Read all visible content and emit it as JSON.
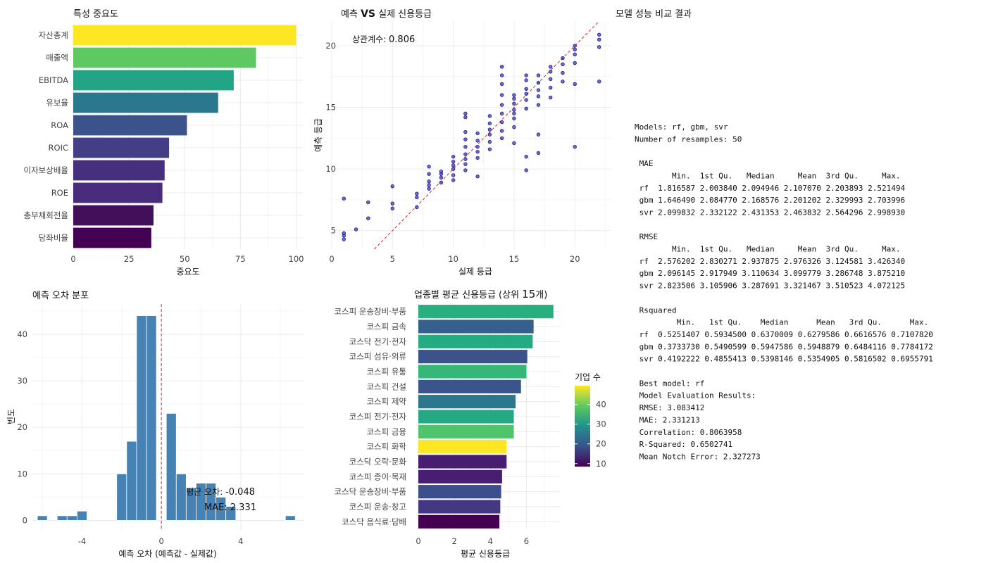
{
  "colors": {
    "bar_blue": "#4682b4",
    "refline": "#d62728",
    "point_fill": "#3b3bc4",
    "point_stroke": "#1a1a80"
  },
  "chart_data": [
    {
      "id": "importance",
      "type": "bar",
      "orientation": "horizontal",
      "title": "특성 중요도",
      "xlabel": "중요도",
      "ylabel": "",
      "xlim": [
        0,
        103
      ],
      "xticks": [
        0,
        25,
        50,
        75,
        100
      ],
      "categories": [
        "자산총계",
        "매출액",
        "EBITDA",
        "유보율",
        "ROA",
        "ROIC",
        "이자보상배율",
        "ROE",
        "총부채회전율",
        "당좌비율"
      ],
      "values": [
        100,
        82,
        72,
        65,
        51,
        43,
        41,
        40,
        36,
        35
      ],
      "colors": [
        "#fde725",
        "#5ec962",
        "#21a585",
        "#2a788e",
        "#3b528b",
        "#433e85",
        "#46307e",
        "#472d7b",
        "#440f5a",
        "#440154"
      ]
    },
    {
      "id": "scatter",
      "type": "scatter",
      "title_parts": [
        "예측 ",
        "VS",
        " 실제 신용등급"
      ],
      "xlabel": "실제 등급",
      "ylabel": "예측 등급",
      "xlim": [
        0,
        23
      ],
      "ylim": [
        3.5,
        22
      ],
      "xticks": [
        0,
        5,
        10,
        15,
        20
      ],
      "yticks": [
        5,
        10,
        15,
        20
      ],
      "annotation_label": "상관계수: ",
      "annotation_value": "0.806",
      "reference_line": "y = x",
      "points": [
        [
          1,
          4.3
        ],
        [
          1,
          4.6
        ],
        [
          1,
          4.8
        ],
        [
          1,
          7.6
        ],
        [
          2,
          5.1
        ],
        [
          3,
          6.0
        ],
        [
          3,
          7.3
        ],
        [
          5,
          6.8
        ],
        [
          5,
          7.2
        ],
        [
          5,
          8.6
        ],
        [
          7,
          6.9
        ],
        [
          7,
          7.7
        ],
        [
          7,
          8.0
        ],
        [
          8,
          8.4
        ],
        [
          8,
          8.7
        ],
        [
          8,
          9.0
        ],
        [
          8,
          9.6
        ],
        [
          8,
          10.2
        ],
        [
          9,
          8.9
        ],
        [
          9,
          9.3
        ],
        [
          9,
          9.6
        ],
        [
          9,
          9.8
        ],
        [
          10,
          9.1
        ],
        [
          10,
          9.5
        ],
        [
          10,
          10.0
        ],
        [
          10,
          10.3
        ],
        [
          10,
          10.6
        ],
        [
          10,
          11.0
        ],
        [
          11,
          9.9
        ],
        [
          11,
          10.4
        ],
        [
          11,
          10.8
        ],
        [
          11,
          11.2
        ],
        [
          11,
          11.8
        ],
        [
          11,
          12.4
        ],
        [
          11,
          13.0
        ],
        [
          11,
          14.2
        ],
        [
          11,
          14.5
        ],
        [
          12,
          10.9
        ],
        [
          12,
          11.4
        ],
        [
          12,
          11.8
        ],
        [
          12,
          12.3
        ],
        [
          12,
          12.9
        ],
        [
          13,
          11.6
        ],
        [
          13,
          12.2
        ],
        [
          13,
          12.8
        ],
        [
          13,
          13.2
        ],
        [
          13,
          13.7
        ],
        [
          13,
          14.3
        ],
        [
          14,
          12.5
        ],
        [
          14,
          13.1
        ],
        [
          14,
          13.8
        ],
        [
          14,
          14.5
        ],
        [
          14,
          15.2
        ],
        [
          14,
          16.0
        ],
        [
          14,
          16.9
        ],
        [
          14,
          17.6
        ],
        [
          14,
          18.3
        ],
        [
          15,
          12.1
        ],
        [
          15,
          13.4
        ],
        [
          15,
          14.1
        ],
        [
          15,
          14.8
        ],
        [
          15,
          15.3
        ],
        [
          15,
          15.7
        ],
        [
          15,
          16.0
        ],
        [
          16,
          9.9
        ],
        [
          16,
          14.9
        ],
        [
          16,
          15.6
        ],
        [
          16,
          16.1
        ],
        [
          16,
          16.5
        ],
        [
          16,
          17.2
        ],
        [
          16,
          17.6
        ],
        [
          17,
          12.8
        ],
        [
          17,
          15.2
        ],
        [
          17,
          15.9
        ],
        [
          17,
          16.4
        ],
        [
          17,
          17.0
        ],
        [
          17,
          17.6
        ],
        [
          18,
          15.8
        ],
        [
          18,
          16.6
        ],
        [
          18,
          17.3
        ],
        [
          18,
          17.9
        ],
        [
          18,
          18.3
        ],
        [
          19,
          17.1
        ],
        [
          19,
          17.8
        ],
        [
          19,
          18.5
        ],
        [
          19,
          19.0
        ],
        [
          20,
          16.9
        ],
        [
          20,
          18.6
        ],
        [
          20,
          19.3
        ],
        [
          20,
          19.7
        ],
        [
          20,
          20.0
        ],
        [
          22,
          17.1
        ],
        [
          22,
          19.9
        ],
        [
          22,
          20.5
        ],
        [
          22,
          20.9
        ],
        [
          20,
          11.8
        ],
        [
          17,
          11.3
        ],
        [
          16,
          11.0
        ],
        [
          12,
          9.4
        ],
        [
          15,
          14.5
        ]
      ]
    },
    {
      "id": "histogram",
      "type": "bar",
      "subtype": "histogram",
      "title": "예측 오차 분포",
      "xlabel": "예측 오차 (예측값 - 실제값)",
      "ylabel": "빈도",
      "xlim": [
        -6.5,
        7.2
      ],
      "ylim": [
        -2.2,
        46.5
      ],
      "xticks": [
        -4,
        0,
        4
      ],
      "yticks": [
        0,
        10,
        20,
        30,
        40
      ],
      "bin_width": 0.5,
      "bins": [
        {
          "x": -6.0,
          "count": 1
        },
        {
          "x": -5.0,
          "count": 1
        },
        {
          "x": -4.5,
          "count": 1
        },
        {
          "x": -4.0,
          "count": 2
        },
        {
          "x": -2.0,
          "count": 10
        },
        {
          "x": -1.5,
          "count": 17
        },
        {
          "x": -1.0,
          "count": 44
        },
        {
          "x": -0.5,
          "count": 44
        },
        {
          "x": 0.5,
          "count": 23
        },
        {
          "x": 1.0,
          "count": 10
        },
        {
          "x": 1.5,
          "count": 7
        },
        {
          "x": 2.0,
          "count": 8
        },
        {
          "x": 2.5,
          "count": 8
        },
        {
          "x": 3.0,
          "count": 5
        },
        {
          "x": 3.5,
          "count": 3
        },
        {
          "x": 6.5,
          "count": 1
        }
      ],
      "mean_line_x": 0,
      "annotation_mean_label": "평균 오차: ",
      "annotation_mean_value": "-0.048",
      "annotation_mae_label": "MAE: ",
      "annotation_mae_value": "2.331"
    },
    {
      "id": "industry",
      "type": "bar",
      "orientation": "horizontal",
      "title_parts": [
        "업종별 평균 신용등급 (상위 ",
        "15",
        "개)"
      ],
      "xlabel": "평균 신용등급",
      "ylabel": "",
      "xlim": [
        0,
        7.9
      ],
      "xticks": [
        0,
        2,
        4,
        6
      ],
      "categories": [
        "코스피 운송장비·부품",
        "코스피 금속",
        "코스닥 전기·전자",
        "코스피 섬유·의류",
        "코스피 유통",
        "코스피 건설",
        "코스피 제약",
        "코스피 전기·전자",
        "코스피 금융",
        "코스피 화학",
        "코스닥 오락·문화",
        "코스피 종이·목재",
        "코스닥 운송장비·부품",
        "코스피 운송·창고",
        "코스닥 음식료·담배"
      ],
      "values": [
        7.5,
        6.4,
        6.35,
        6.05,
        6.0,
        5.7,
        5.4,
        5.3,
        5.3,
        4.9,
        4.9,
        4.65,
        4.6,
        4.55,
        4.5
      ],
      "company_counts": [
        40,
        20,
        36,
        18,
        38,
        18,
        28,
        33,
        42,
        49,
        10,
        11,
        21,
        15,
        9
      ],
      "colors": [
        "#29af7f",
        "#355f8d",
        "#25ab82",
        "#3b528b",
        "#35b779",
        "#3a548c",
        "#2a778e",
        "#25a884",
        "#50c46a",
        "#fde725",
        "#461d6f",
        "#471e71",
        "#3c4f8a",
        "#443883",
        "#440154"
      ],
      "legend_title": "기업 수",
      "legend_range": [
        8.5,
        49.5
      ],
      "legend_ticks": [
        10,
        20,
        30,
        40
      ]
    }
  ],
  "model_output": {
    "title": "모델 성능 비교 결과",
    "lines": [
      "Models: rf, gbm, svr",
      "Number of resamples: 50",
      "",
      " MAE",
      "        Min.  1st Qu.   Median     Mean  3rd Qu.     Max.",
      " rf  1.816587 2.003840 2.094946 2.107070 2.203893 2.521494",
      " gbm 1.646490 2.084770 2.168576 2.201202 2.329993 2.703996",
      " svr 2.099832 2.332122 2.431353 2.463832 2.564296 2.998930",
      "",
      " RMSE",
      "        Min.  1st Qu.   Median     Mean  3rd Qu.     Max.",
      " rf  2.576202 2.830271 2.937875 2.976326 3.124581 3.426340",
      " gbm 2.096145 2.917949 3.110634 3.099779 3.286748 3.875210",
      " svr 2.823506 3.105906 3.287691 3.321467 3.510523 4.072125",
      "",
      " Rsquared",
      "         Min.   1st Qu.    Median      Mean   3rd Qu.      Max.",
      " rf  0.5251407 0.5934500 0.6370009 0.6279586 0.6616576 0.7107820",
      " gbm 0.3733730 0.5490599 0.5947586 0.5948879 0.6484116 0.7784172",
      " svr 0.4192222 0.4855413 0.5398146 0.5354905 0.5816502 0.6955791",
      "",
      " Best model: rf",
      " Model Evaluation Results:",
      " RMSE: 3.083412",
      " MAE: 2.331213",
      " Correlation: 0.8063958",
      " R-Squared: 0.6502741",
      " Mean Notch Error: 2.327273"
    ]
  }
}
